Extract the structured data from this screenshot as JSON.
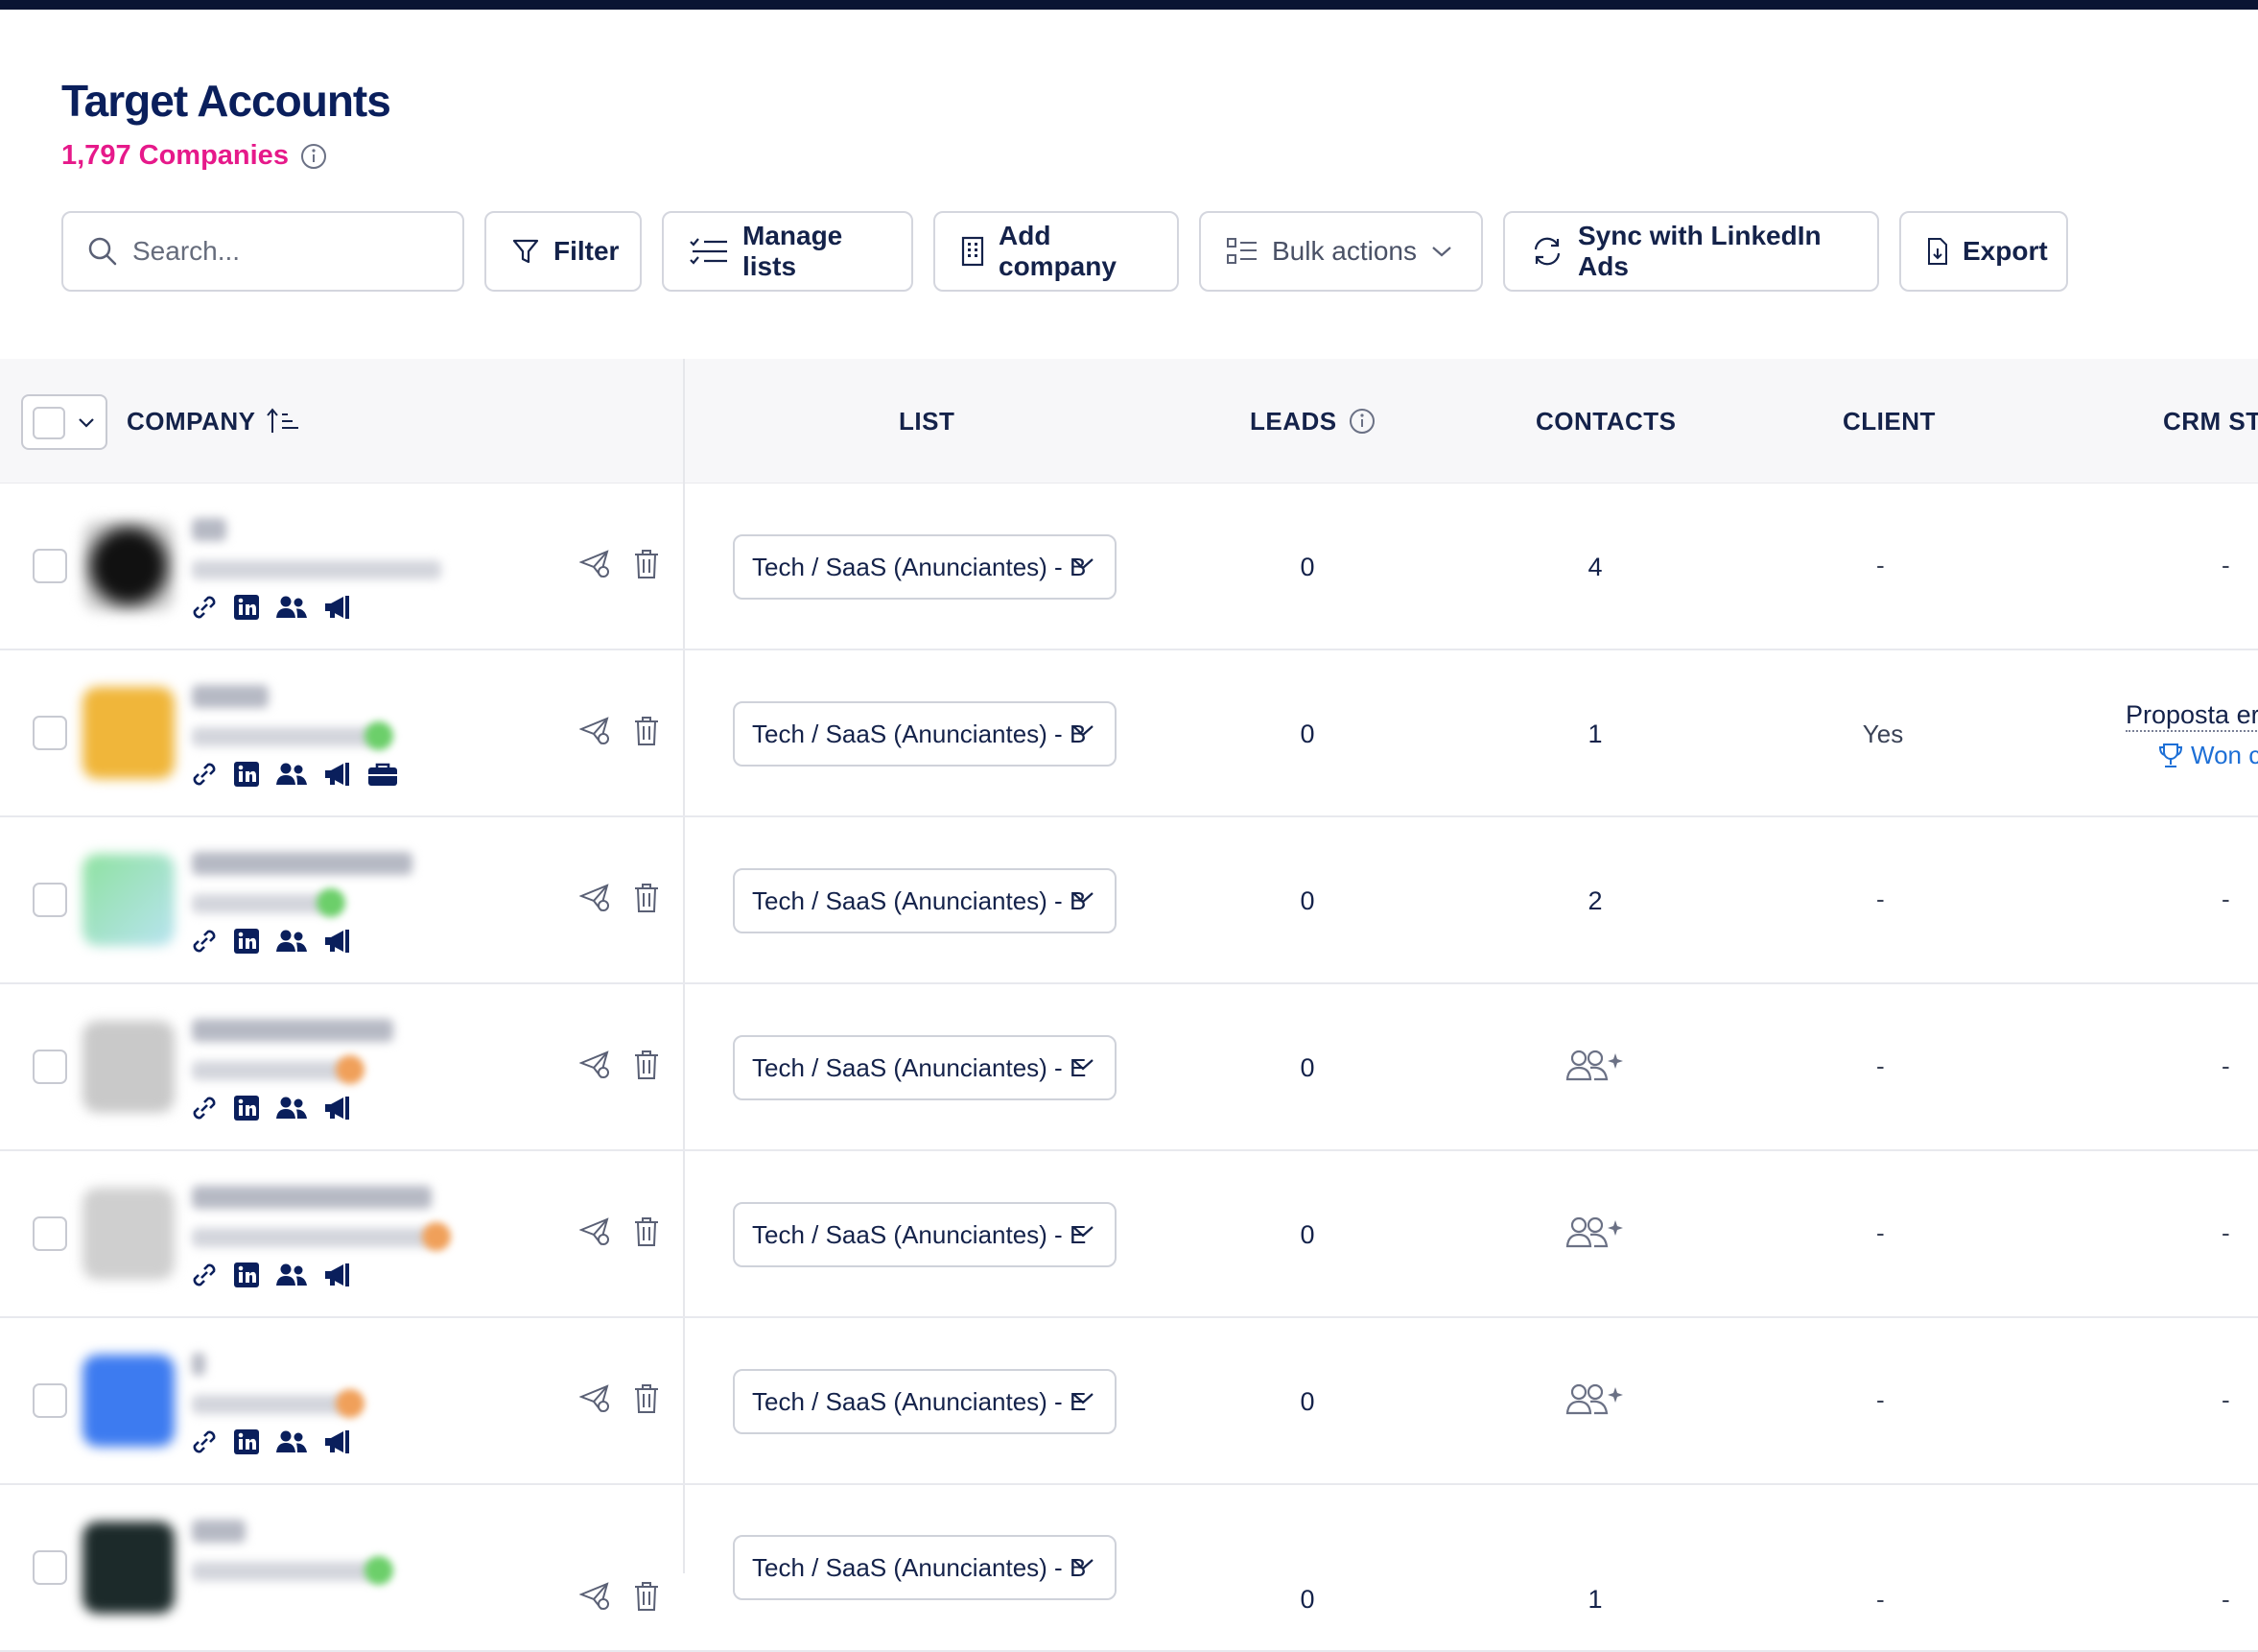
{
  "header": {
    "title": "Target Accounts",
    "count": "1,797 Companies"
  },
  "toolbar": {
    "search_placeholder": "Search...",
    "filter": "Filter",
    "manage_lists": "Manage lists",
    "add_company": "Add company",
    "bulk_actions": "Bulk actions",
    "sync": "Sync with LinkedIn Ads",
    "export": "Export"
  },
  "columns": {
    "company": "COMPANY",
    "list": "LIST",
    "leads": "LEADS",
    "contacts": "CONTACTS",
    "client": "CLIENT",
    "crm": "CRM STA"
  },
  "rows": [
    {
      "list": "Tech / SaaS (Anunciantes) - B",
      "leads": "0",
      "contacts": "4",
      "client": "-",
      "crm": "-"
    },
    {
      "list": "Tech / SaaS (Anunciantes) - B",
      "leads": "0",
      "contacts": "1",
      "client": "Yes",
      "crm": "Proposta er",
      "crm_sub": "Won c"
    },
    {
      "list": "Tech / SaaS (Anunciantes) - B",
      "leads": "0",
      "contacts": "2",
      "client": "-",
      "crm": "-"
    },
    {
      "list": "Tech / SaaS (Anunciantes) - E",
      "leads": "0",
      "contacts": "",
      "client": "-",
      "crm": "-"
    },
    {
      "list": "Tech / SaaS (Anunciantes) - E",
      "leads": "0",
      "contacts": "",
      "client": "-",
      "crm": "-"
    },
    {
      "list": "Tech / SaaS (Anunciantes) - E",
      "leads": "0",
      "contacts": "",
      "client": "-",
      "crm": "-"
    },
    {
      "list": "Tech / SaaS (Anunciantes) - B",
      "leads": "0",
      "contacts": "1",
      "client": "-",
      "crm": "-"
    }
  ],
  "colors": {
    "accent": "#e6198a",
    "navy": "#0a1f5c",
    "link": "#1d6fd6"
  }
}
